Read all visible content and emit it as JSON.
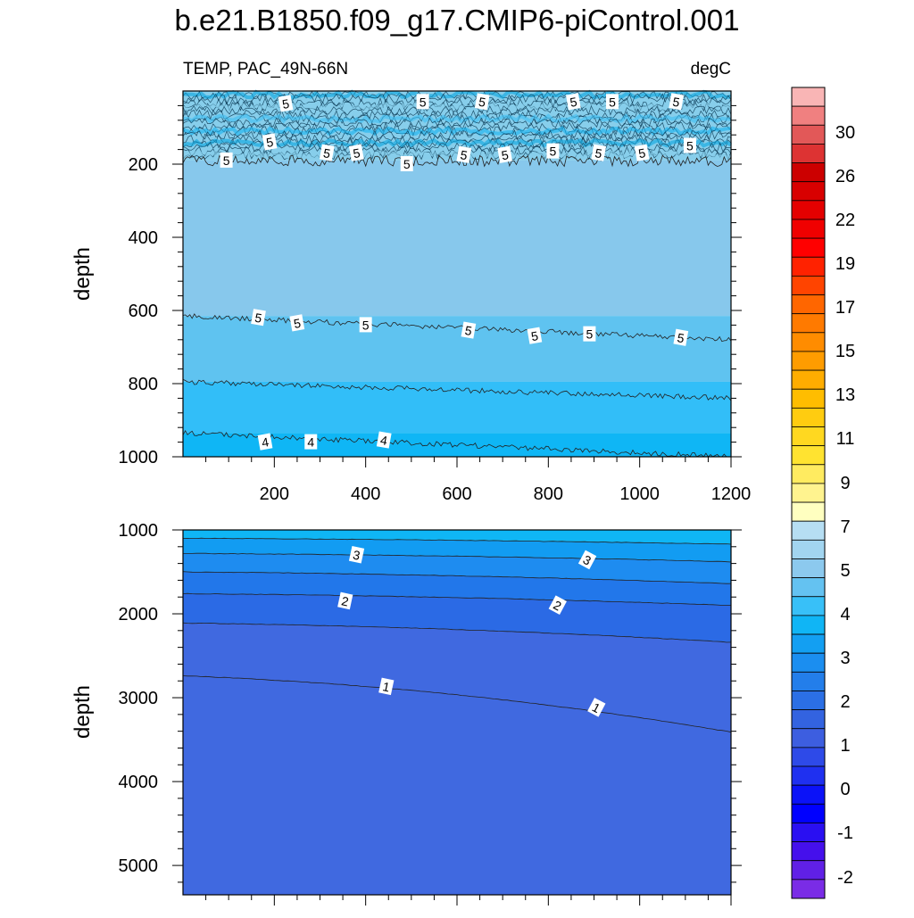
{
  "title": "b.e21.B1850.f09_g17.CMIP6-piControl.001",
  "chart_data": [
    {
      "type": "contour",
      "panel": "upper",
      "left_label": "TEMP, PAC_49N-66N",
      "right_label": "degC",
      "xlabel": "",
      "ylabel": "depth",
      "xlim": [
        0,
        1200
      ],
      "ylim": [
        0,
        1000
      ],
      "y_reversed": true,
      "x_ticks": [
        "200",
        "400",
        "600",
        "800",
        "1000",
        "1200"
      ],
      "y_ticks": [
        "200",
        "400",
        "600",
        "800",
        "1000"
      ],
      "bands": [
        {
          "from_depth": 0,
          "to_depth": 190,
          "value_range": [
            5.5,
            7.5
          ],
          "color": "#87ceeb",
          "noisy": true
        },
        {
          "from_depth": 190,
          "to_depth": 615,
          "value_range": [
            5.5,
            6
          ],
          "color": "#87c8ec"
        },
        {
          "from_depth": 615,
          "to_depth": 795,
          "value_range": [
            5,
            5.5
          ],
          "color": "#5fc3f0"
        },
        {
          "from_depth": 795,
          "to_depth": 935,
          "value_range": [
            4.5,
            5
          ],
          "color": "#32bef8"
        },
        {
          "from_depth": 935,
          "to_depth": 1000,
          "value_range": [
            4,
            4.5
          ],
          "color": "#0fb6f5"
        }
      ],
      "contour_labels": [
        {
          "text": "5",
          "x": 225,
          "y": 35
        },
        {
          "text": "5",
          "x": 525,
          "y": 30
        },
        {
          "text": "5",
          "x": 655,
          "y": 30
        },
        {
          "text": "5",
          "x": 855,
          "y": 30
        },
        {
          "text": "5",
          "x": 940,
          "y": 30
        },
        {
          "text": "5",
          "x": 1080,
          "y": 30
        },
        {
          "text": "5",
          "x": 190,
          "y": 140
        },
        {
          "text": "5",
          "x": 95,
          "y": 190
        },
        {
          "text": "5",
          "x": 315,
          "y": 170
        },
        {
          "text": "5",
          "x": 380,
          "y": 170
        },
        {
          "text": "5",
          "x": 490,
          "y": 200
        },
        {
          "text": "5",
          "x": 615,
          "y": 175
        },
        {
          "text": "5",
          "x": 705,
          "y": 175
        },
        {
          "text": "5",
          "x": 810,
          "y": 165
        },
        {
          "text": "5",
          "x": 910,
          "y": 170
        },
        {
          "text": "5",
          "x": 1005,
          "y": 170
        },
        {
          "text": "5",
          "x": 1110,
          "y": 150
        },
        {
          "text": "5",
          "x": 165,
          "y": 620
        },
        {
          "text": "5",
          "x": 250,
          "y": 635
        },
        {
          "text": "5",
          "x": 400,
          "y": 640
        },
        {
          "text": "5",
          "x": 625,
          "y": 655
        },
        {
          "text": "5",
          "x": 770,
          "y": 670
        },
        {
          "text": "5",
          "x": 890,
          "y": 665
        },
        {
          "text": "5",
          "x": 1090,
          "y": 675
        },
        {
          "text": "4",
          "x": 180,
          "y": 960
        },
        {
          "text": "4",
          "x": 280,
          "y": 960
        },
        {
          "text": "4",
          "x": 440,
          "y": 955
        }
      ]
    },
    {
      "type": "contour",
      "panel": "lower",
      "xlabel": "",
      "ylabel": "depth",
      "xlim": [
        0,
        1200
      ],
      "ylim": [
        1000,
        5350
      ],
      "y_reversed": true,
      "y_ticks": [
        "1000",
        "2000",
        "3000",
        "4000",
        "5000"
      ],
      "contours": [
        {
          "value": 3.5,
          "depth_left": 1100,
          "depth_right": 1170
        },
        {
          "value": 3,
          "depth_left": 1280,
          "depth_right": 1380
        },
        {
          "value": 2.5,
          "depth_left": 1500,
          "depth_right": 1640
        },
        {
          "value": 2,
          "depth_left": 1760,
          "depth_right": 1900
        },
        {
          "value": 1.5,
          "depth_left": 2110,
          "depth_right": 2340
        },
        {
          "value": 1,
          "depth_left": 2740,
          "depth_right": 3410
        }
      ],
      "band_colors": [
        "#0fb6f5",
        "#129cf2",
        "#1e8cf0",
        "#2277ea",
        "#2b6ae5",
        "#4069e0"
      ],
      "contour_labels": [
        {
          "text": "3",
          "x": 380,
          "y": 1300
        },
        {
          "text": "3",
          "x": 885,
          "y": 1360
        },
        {
          "text": "2",
          "x": 355,
          "y": 1850
        },
        {
          "text": "2",
          "x": 820,
          "y": 1900
        },
        {
          "text": "1",
          "x": 445,
          "y": 2870
        },
        {
          "text": "1",
          "x": 905,
          "y": 3120
        }
      ]
    }
  ],
  "colorbar": {
    "tick_labels": [
      "30",
      "26",
      "22",
      "19",
      "17",
      "15",
      "13",
      "11",
      "9",
      "7",
      "5",
      "4",
      "3",
      "2",
      "1",
      "0",
      "-1",
      "-2"
    ],
    "colors": [
      "#f9b5b5",
      "#f08080",
      "#e25858",
      "#dd3333",
      "#cc0000",
      "#d80000",
      "#e40000",
      "#f00000",
      "#ff0000",
      "#ff2200",
      "#ff4400",
      "#ff6600",
      "#ff7a00",
      "#ff8c00",
      "#ff9c00",
      "#ffad00",
      "#ffbd00",
      "#ffcc10",
      "#ffd820",
      "#ffe330",
      "#ffeb60",
      "#fff38f",
      "#ffffc0",
      "#b6def3",
      "#a2d5f0",
      "#8cc9ee",
      "#64c2f1",
      "#38c0f8",
      "#10b5f5",
      "#139ff2",
      "#1b8ef0",
      "#237eea",
      "#2b6fe5",
      "#3363e0",
      "#3d5ee0",
      "#2e4ae8",
      "#1f30f0",
      "#0b12f8",
      "#0000ff",
      "#2a0ff2",
      "#4510ec",
      "#6020e6",
      "#7a2ce6"
    ]
  }
}
